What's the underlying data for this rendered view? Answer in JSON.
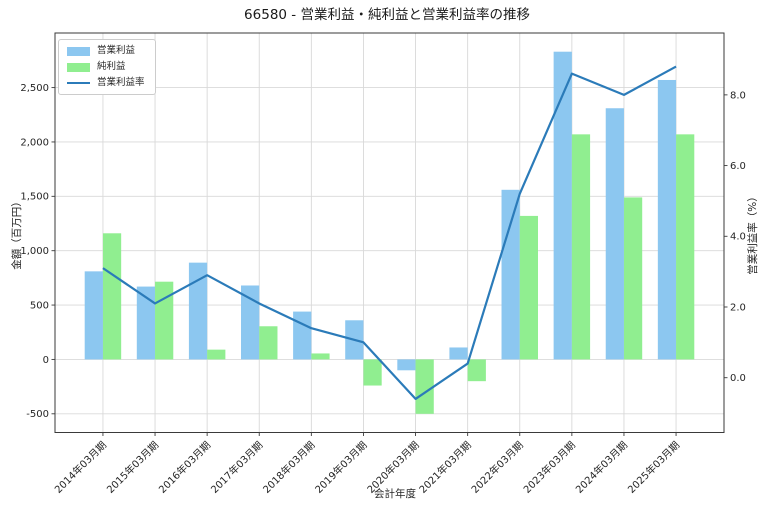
{
  "chart_data": {
    "type": "bar+line",
    "title": "66580 - 営業利益・純利益と営業利益率の推移",
    "xlabel": "会計年度",
    "ylabel_left": "金額（百万円）",
    "ylabel_right": "営業利益率（%）",
    "categories": [
      "2014年03月期",
      "2015年03月期",
      "2016年03月期",
      "2017年03月期",
      "2018年03月期",
      "2019年03月期",
      "2020年03月期",
      "2021年03月期",
      "2022年03月期",
      "2023年03月期",
      "2024年03月期",
      "2025年03月期"
    ],
    "series": [
      {
        "name": "営業利益",
        "type": "bar",
        "axis": "left",
        "color": "#8CC7F0",
        "values": [
          810,
          670,
          890,
          680,
          440,
          360,
          -100,
          110,
          1560,
          2830,
          2310,
          2570
        ]
      },
      {
        "name": "純利益",
        "type": "bar",
        "axis": "left",
        "color": "#90EE90",
        "values": [
          1160,
          715,
          90,
          305,
          55,
          -240,
          -500,
          -200,
          1320,
          2070,
          1490,
          2070
        ]
      },
      {
        "name": "営業利益率",
        "type": "line",
        "axis": "right",
        "color": "#2B7BB9",
        "values": [
          3.1,
          2.1,
          2.9,
          2.1,
          1.4,
          1.0,
          -0.6,
          0.4,
          5.2,
          8.6,
          8.0,
          8.8
        ]
      }
    ],
    "y_left": {
      "ticks": [
        -500,
        0,
        500,
        1000,
        1500,
        2000,
        2500
      ],
      "min": -672,
      "max": 3002
    },
    "y_right": {
      "ticks": [
        0.0,
        2.0,
        4.0,
        6.0,
        8.0
      ],
      "min": -1.55,
      "max": 9.75
    },
    "grid": true,
    "legend_position": "upper left"
  },
  "colors": {
    "grid": "#d9d9d9",
    "spine": "#3a3a3a",
    "text": "#262626",
    "background": "#ffffff"
  }
}
